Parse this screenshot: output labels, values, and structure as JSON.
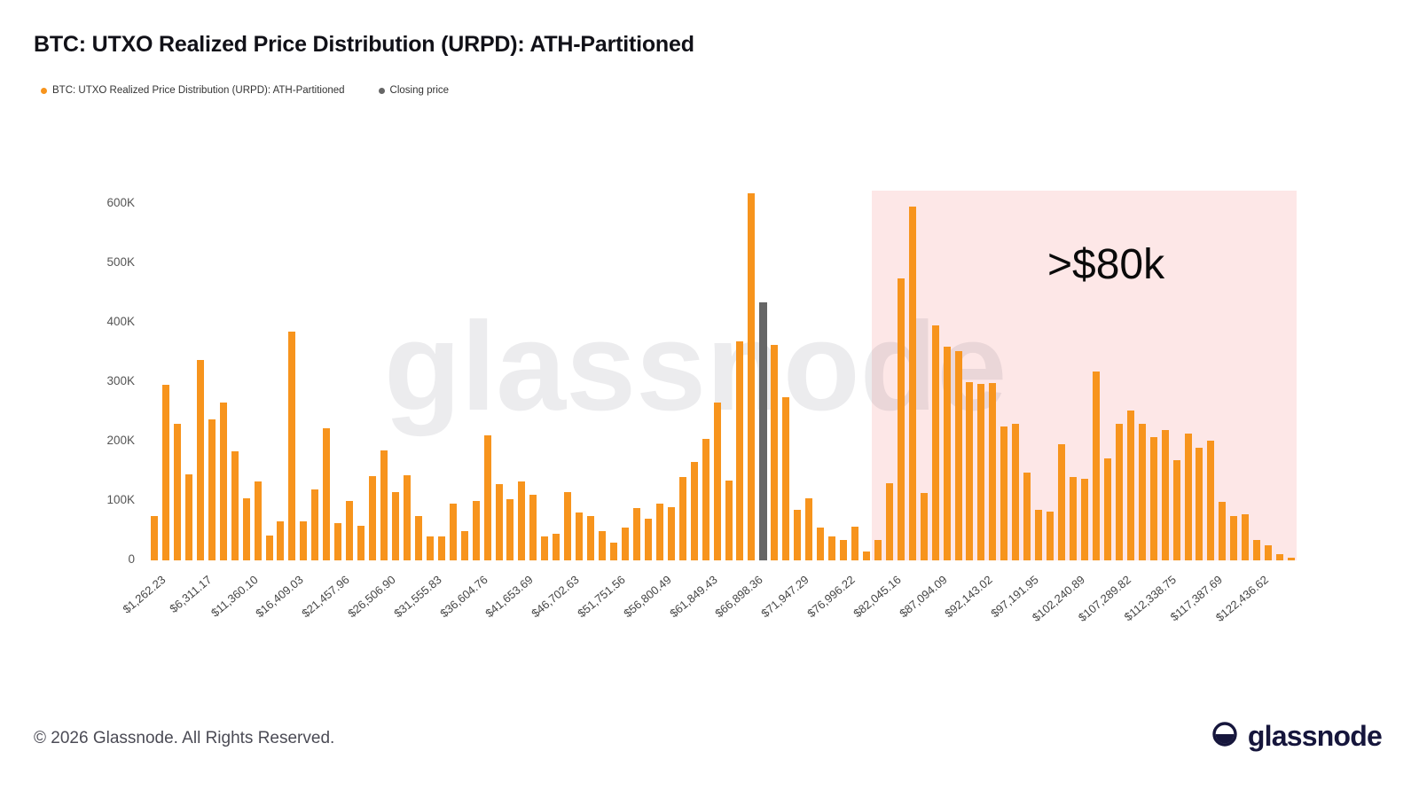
{
  "header": {
    "title": "BTC: UTXO Realized Price Distribution (URPD): ATH-Partitioned"
  },
  "legend": {
    "items": [
      {
        "label": "BTC: UTXO Realized Price Distribution (URPD): ATH-Partitioned",
        "color": "#F7941D"
      },
      {
        "label": "Closing price",
        "color": "#666666"
      }
    ]
  },
  "chart_data": {
    "type": "bar",
    "title": "BTC: UTXO Realized Price Distribution (URPD): ATH-Partitioned",
    "y_unit": "K",
    "ylim": [
      0,
      600
    ],
    "y_ticks": [
      "0",
      "100K",
      "200K",
      "300K",
      "400K",
      "500K",
      "600K"
    ],
    "tick_every": 4,
    "categories": [
      "$1,262.23",
      "$6,311.17",
      "$11,360.10",
      "$16,409.03",
      "$21,457.96",
      "$26,506.90",
      "$31,555.83",
      "$36,604.76",
      "$41,653.69",
      "$46,702.63",
      "$51,751.56",
      "$56,800.49",
      "$61,849.43",
      "$66,898.36",
      "$71,947.29",
      "$76,996.22",
      "$82,045.16",
      "$87,094.09",
      "$92,143.02",
      "$97,191.95",
      "$102,240.89",
      "$107,289.82",
      "$112,338.75",
      "$117,387.69",
      "$122,436.62"
    ],
    "values": [
      75,
      295,
      230,
      145,
      338,
      238,
      265,
      183,
      105,
      133,
      42,
      65,
      385,
      65,
      120,
      222,
      62,
      100,
      58,
      142,
      185,
      115,
      143,
      75,
      40,
      40,
      95,
      50,
      100,
      210,
      128,
      103,
      133,
      110,
      40,
      45,
      115,
      80,
      75,
      50,
      30,
      55,
      88,
      70,
      95,
      90,
      140,
      165,
      205,
      265,
      135,
      368,
      618,
      0,
      362,
      275,
      85,
      105,
      55,
      40,
      35,
      57,
      15,
      35,
      130,
      475,
      595,
      113,
      395,
      360,
      352,
      300,
      297,
      298,
      225,
      230,
      148,
      85,
      82,
      195,
      140,
      138,
      318,
      172,
      230,
      252,
      230,
      208,
      220,
      168,
      213,
      190,
      202,
      98,
      75,
      78,
      35,
      25,
      10,
      5
    ],
    "closing_price": {
      "bar_index": 53,
      "value": 435,
      "label": "Closing price"
    },
    "highlight": {
      "label": ">$80k",
      "from_bar_index": 63
    },
    "grid": "off",
    "legend_position": "top-left"
  },
  "annotation": {
    "label": ">$80k"
  },
  "footer": {
    "copyright": "© 2026 Glassnode. All Rights Reserved.",
    "brand": "glassnode"
  }
}
